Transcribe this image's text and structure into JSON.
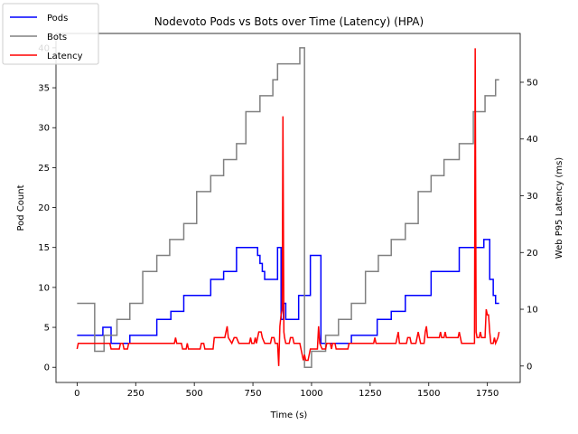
{
  "chart_data": {
    "type": "line",
    "title": "Nodevoto Pods vs Bots over Time (Latency)  (HPA)",
    "xlabel": "Time (s)",
    "ylabel": "Pod Count",
    "y2label": "Web P95 Latency (ms)",
    "xlim": [
      -90,
      1890
    ],
    "ylim": [
      -1.9,
      41.8
    ],
    "y2lim": [
      -2.9,
      58.6
    ],
    "x_ticks": [
      0,
      250,
      500,
      750,
      1000,
      1250,
      1500,
      1750
    ],
    "y_ticks": [
      0,
      5,
      10,
      15,
      20,
      25,
      30,
      35,
      40
    ],
    "y2_ticks": [
      0,
      10,
      20,
      30,
      40,
      50
    ],
    "legend": {
      "placement": "top-left",
      "entries": [
        "Pods",
        "Bots",
        "Latency"
      ]
    },
    "series": [
      {
        "name": "Pods",
        "axis": "left",
        "color": "#0000ff",
        "points": [
          [
            0,
            4
          ],
          [
            110,
            4
          ],
          [
            110,
            5
          ],
          [
            145,
            5
          ],
          [
            145,
            3
          ],
          [
            225,
            3
          ],
          [
            225,
            4
          ],
          [
            340,
            4
          ],
          [
            340,
            6
          ],
          [
            400,
            6
          ],
          [
            400,
            7
          ],
          [
            455,
            7
          ],
          [
            455,
            9
          ],
          [
            570,
            9
          ],
          [
            570,
            11
          ],
          [
            625,
            11
          ],
          [
            625,
            12
          ],
          [
            680,
            12
          ],
          [
            680,
            15
          ],
          [
            770,
            15
          ],
          [
            770,
            14
          ],
          [
            780,
            14
          ],
          [
            780,
            13
          ],
          [
            790,
            13
          ],
          [
            790,
            12
          ],
          [
            800,
            12
          ],
          [
            800,
            11
          ],
          [
            855,
            11
          ],
          [
            855,
            15
          ],
          [
            870,
            15
          ],
          [
            870,
            6
          ],
          [
            880,
            6
          ],
          [
            880,
            8
          ],
          [
            890,
            8
          ],
          [
            890,
            6
          ],
          [
            945,
            6
          ],
          [
            945,
            9
          ],
          [
            995,
            9
          ],
          [
            995,
            14
          ],
          [
            1040,
            14
          ],
          [
            1040,
            3
          ],
          [
            1170,
            3
          ],
          [
            1170,
            4
          ],
          [
            1280,
            4
          ],
          [
            1280,
            6
          ],
          [
            1340,
            6
          ],
          [
            1340,
            7
          ],
          [
            1400,
            7
          ],
          [
            1400,
            9
          ],
          [
            1510,
            9
          ],
          [
            1510,
            12
          ],
          [
            1630,
            12
          ],
          [
            1630,
            15
          ],
          [
            1735,
            15
          ],
          [
            1735,
            16
          ],
          [
            1760,
            16
          ],
          [
            1760,
            11
          ],
          [
            1775,
            11
          ],
          [
            1775,
            9
          ],
          [
            1785,
            9
          ],
          [
            1785,
            8
          ],
          [
            1800,
            8
          ]
        ]
      },
      {
        "name": "Bots",
        "axis": "left",
        "color": "#808080",
        "points": [
          [
            0,
            8
          ],
          [
            75,
            8
          ],
          [
            75,
            2
          ],
          [
            115,
            2
          ],
          [
            115,
            4
          ],
          [
            170,
            4
          ],
          [
            170,
            6
          ],
          [
            225,
            6
          ],
          [
            225,
            8
          ],
          [
            280,
            8
          ],
          [
            280,
            12
          ],
          [
            340,
            12
          ],
          [
            340,
            14
          ],
          [
            395,
            14
          ],
          [
            395,
            16
          ],
          [
            455,
            16
          ],
          [
            455,
            18
          ],
          [
            510,
            18
          ],
          [
            510,
            22
          ],
          [
            570,
            22
          ],
          [
            570,
            24
          ],
          [
            625,
            24
          ],
          [
            625,
            26
          ],
          [
            680,
            26
          ],
          [
            680,
            28
          ],
          [
            720,
            28
          ],
          [
            720,
            32
          ],
          [
            780,
            32
          ],
          [
            780,
            34
          ],
          [
            835,
            34
          ],
          [
            835,
            36
          ],
          [
            855,
            36
          ],
          [
            855,
            38
          ],
          [
            950,
            38
          ],
          [
            950,
            40
          ],
          [
            970,
            40
          ],
          [
            970,
            0
          ],
          [
            1000,
            0
          ],
          [
            1000,
            2
          ],
          [
            1060,
            2
          ],
          [
            1060,
            4
          ],
          [
            1115,
            4
          ],
          [
            1115,
            6
          ],
          [
            1170,
            6
          ],
          [
            1170,
            8
          ],
          [
            1230,
            8
          ],
          [
            1230,
            12
          ],
          [
            1285,
            12
          ],
          [
            1285,
            14
          ],
          [
            1340,
            14
          ],
          [
            1340,
            16
          ],
          [
            1400,
            16
          ],
          [
            1400,
            18
          ],
          [
            1455,
            18
          ],
          [
            1455,
            22
          ],
          [
            1510,
            22
          ],
          [
            1510,
            24
          ],
          [
            1565,
            24
          ],
          [
            1565,
            26
          ],
          [
            1630,
            26
          ],
          [
            1630,
            28
          ],
          [
            1690,
            28
          ],
          [
            1690,
            32
          ],
          [
            1740,
            32
          ],
          [
            1740,
            34
          ],
          [
            1785,
            34
          ],
          [
            1785,
            36
          ],
          [
            1800,
            36
          ]
        ]
      },
      {
        "name": "Latency",
        "axis": "right",
        "color": "#ff0000",
        "points": [
          [
            0,
            3
          ],
          [
            5,
            4
          ],
          [
            140,
            4
          ],
          [
            145,
            3
          ],
          [
            180,
            3
          ],
          [
            185,
            4
          ],
          [
            195,
            4
          ],
          [
            200,
            3
          ],
          [
            215,
            3
          ],
          [
            220,
            4
          ],
          [
            415,
            4
          ],
          [
            420,
            5
          ],
          [
            425,
            4
          ],
          [
            445,
            4
          ],
          [
            450,
            3
          ],
          [
            465,
            3
          ],
          [
            470,
            4
          ],
          [
            475,
            3
          ],
          [
            525,
            3
          ],
          [
            530,
            4
          ],
          [
            540,
            4
          ],
          [
            545,
            3
          ],
          [
            580,
            3
          ],
          [
            585,
            5
          ],
          [
            630,
            5
          ],
          [
            635,
            6
          ],
          [
            640,
            7
          ],
          [
            645,
            5
          ],
          [
            660,
            4
          ],
          [
            670,
            5
          ],
          [
            680,
            5
          ],
          [
            690,
            4
          ],
          [
            735,
            4
          ],
          [
            740,
            5
          ],
          [
            745,
            4
          ],
          [
            755,
            4
          ],
          [
            760,
            5
          ],
          [
            765,
            4
          ],
          [
            770,
            5
          ],
          [
            775,
            6
          ],
          [
            785,
            6
          ],
          [
            790,
            5
          ],
          [
            800,
            4
          ],
          [
            825,
            4
          ],
          [
            830,
            5
          ],
          [
            840,
            5
          ],
          [
            845,
            4
          ],
          [
            855,
            4
          ],
          [
            860,
            0
          ],
          [
            865,
            7
          ],
          [
            870,
            9
          ],
          [
            875,
            10
          ],
          [
            878,
            44
          ],
          [
            882,
            6
          ],
          [
            885,
            5
          ],
          [
            890,
            4
          ],
          [
            905,
            4
          ],
          [
            910,
            5
          ],
          [
            920,
            5
          ],
          [
            925,
            4
          ],
          [
            950,
            4
          ],
          [
            955,
            3
          ],
          [
            960,
            2
          ],
          [
            965,
            1
          ],
          [
            970,
            2
          ],
          [
            975,
            1
          ],
          [
            985,
            1
          ],
          [
            990,
            2
          ],
          [
            995,
            3
          ],
          [
            1025,
            3
          ],
          [
            1030,
            7
          ],
          [
            1035,
            4
          ],
          [
            1045,
            3
          ],
          [
            1060,
            3
          ],
          [
            1065,
            4
          ],
          [
            1080,
            4
          ],
          [
            1085,
            3
          ],
          [
            1090,
            4
          ],
          [
            1100,
            4
          ],
          [
            1105,
            3
          ],
          [
            1155,
            3
          ],
          [
            1160,
            4
          ],
          [
            1265,
            4
          ],
          [
            1270,
            5
          ],
          [
            1275,
            4
          ],
          [
            1360,
            4
          ],
          [
            1365,
            5
          ],
          [
            1370,
            6
          ],
          [
            1375,
            4
          ],
          [
            1405,
            4
          ],
          [
            1410,
            5
          ],
          [
            1420,
            5
          ],
          [
            1425,
            4
          ],
          [
            1445,
            4
          ],
          [
            1450,
            5
          ],
          [
            1455,
            6
          ],
          [
            1460,
            5
          ],
          [
            1465,
            4
          ],
          [
            1480,
            4
          ],
          [
            1485,
            6
          ],
          [
            1490,
            7
          ],
          [
            1495,
            5
          ],
          [
            1545,
            5
          ],
          [
            1550,
            6
          ],
          [
            1555,
            5
          ],
          [
            1565,
            5
          ],
          [
            1570,
            6
          ],
          [
            1575,
            5
          ],
          [
            1625,
            5
          ],
          [
            1630,
            6
          ],
          [
            1635,
            5
          ],
          [
            1640,
            4
          ],
          [
            1695,
            4
          ],
          [
            1698,
            56
          ],
          [
            1702,
            6
          ],
          [
            1706,
            5
          ],
          [
            1715,
            5
          ],
          [
            1720,
            6
          ],
          [
            1725,
            5
          ],
          [
            1740,
            5
          ],
          [
            1745,
            10
          ],
          [
            1750,
            9
          ],
          [
            1755,
            9
          ],
          [
            1760,
            6
          ],
          [
            1765,
            4
          ],
          [
            1775,
            4
          ],
          [
            1780,
            5
          ],
          [
            1785,
            4
          ],
          [
            1795,
            5
          ],
          [
            1800,
            6
          ]
        ]
      }
    ]
  }
}
